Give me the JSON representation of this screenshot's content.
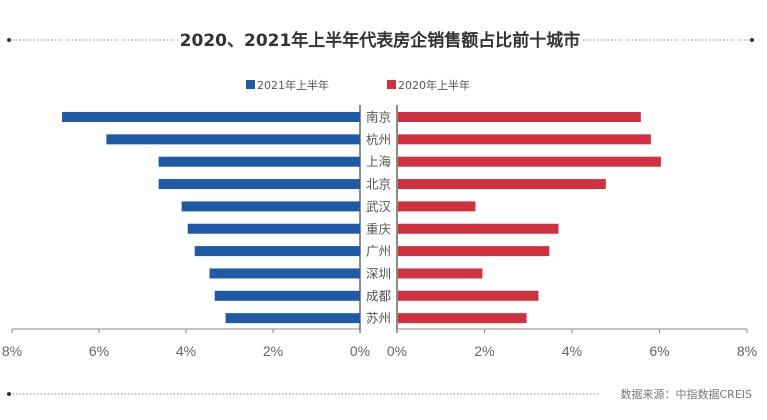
{
  "chart_data": {
    "type": "bar",
    "orientation": "horizontal-butterfly",
    "title": "2020、2021年上半年代表房企销售额占比前十城市",
    "categories": [
      "南京",
      "杭州",
      "上海",
      "北京",
      "武汉",
      "重庆",
      "广州",
      "深圳",
      "成都",
      "苏州"
    ],
    "series": [
      {
        "name": "2021年上半年",
        "side": "left",
        "color": "#1F5AA6",
        "unit": "%",
        "values": [
          6.85,
          5.83,
          4.63,
          4.63,
          4.1,
          3.96,
          3.8,
          3.46,
          3.34,
          3.09
        ]
      },
      {
        "name": "2020年上半年",
        "side": "right",
        "color": "#D1313F",
        "unit": "%",
        "values": [
          5.55,
          5.78,
          6.01,
          4.75,
          1.77,
          3.67,
          3.46,
          1.93,
          3.21,
          2.94
        ]
      }
    ],
    "left_axis": {
      "range": [
        0,
        8
      ],
      "ticks": [
        8,
        6,
        4,
        2,
        0
      ],
      "tick_labels": [
        "8%",
        "6%",
        "4%",
        "2%",
        "0%"
      ]
    },
    "right_axis": {
      "range": [
        0,
        8
      ],
      "ticks": [
        0,
        2,
        4,
        6,
        8
      ],
      "tick_labels": [
        "0%",
        "2%",
        "4%",
        "6%",
        "8%"
      ]
    },
    "xlabel": "",
    "ylabel": "",
    "grid": false,
    "legend": {
      "position": "top-center"
    },
    "source": "数据来源：中指数据CREIS"
  }
}
